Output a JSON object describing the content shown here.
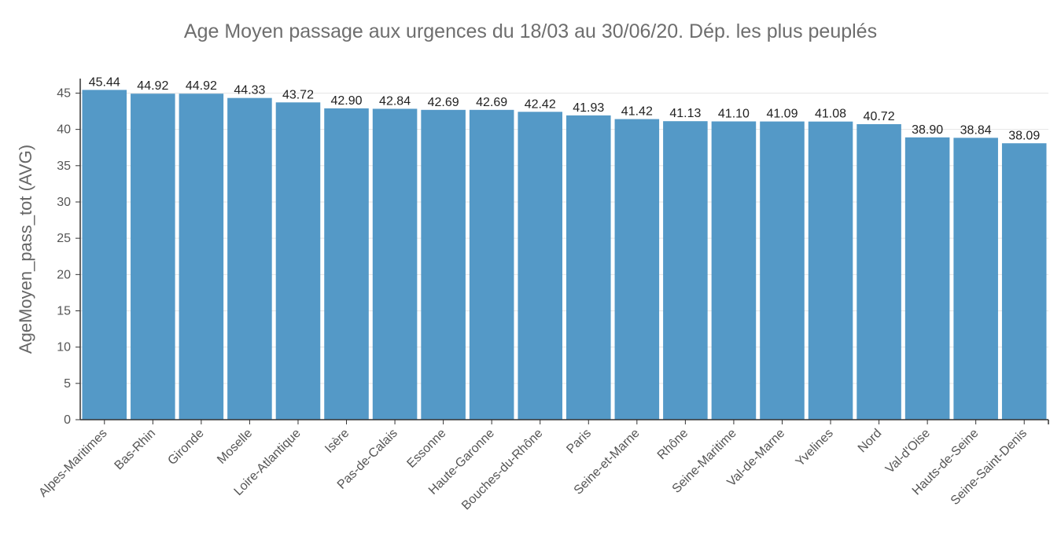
{
  "chart_data": {
    "type": "bar",
    "title": "Age Moyen passage aux urgences du 18/03 au 30/06/20. Dép. les plus peuplés",
    "xlabel": "",
    "ylabel": "AgeMoyen_pass_tot (AVG)",
    "ylim": [
      0,
      47
    ],
    "yticks": [
      0,
      5,
      10,
      15,
      20,
      25,
      30,
      35,
      40,
      45
    ],
    "grid": true,
    "bar_color": "#5499c7",
    "categories": [
      "Alpes-Maritimes",
      "Bas-Rhin",
      "Gironde",
      "Moselle",
      "Loire-Atlantique",
      "Isère",
      "Pas-de-Calais",
      "Essonne",
      "Haute-Garonne",
      "Bouches-du-Rhône",
      "Paris",
      "Seine-et-Marne",
      "Rhône",
      "Seine-Maritime",
      "Val-de-Marne",
      "Yvelines",
      "Nord",
      "Val-d'Oise",
      "Hauts-de-Seine",
      "Seine-Saint-Denis"
    ],
    "values": [
      45.44,
      44.92,
      44.92,
      44.33,
      43.72,
      42.9,
      42.84,
      42.69,
      42.69,
      42.42,
      41.93,
      41.42,
      41.13,
      41.1,
      41.09,
      41.08,
      40.72,
      38.9,
      38.84,
      38.09
    ],
    "value_labels": [
      "45.44",
      "44.92",
      "44.92",
      "44.33",
      "43.72",
      "42.90",
      "42.84",
      "42.69",
      "42.69",
      "42.42",
      "41.93",
      "41.42",
      "41.13",
      "41.10",
      "41.09",
      "41.08",
      "40.72",
      "38.90",
      "38.84",
      "38.09"
    ]
  }
}
